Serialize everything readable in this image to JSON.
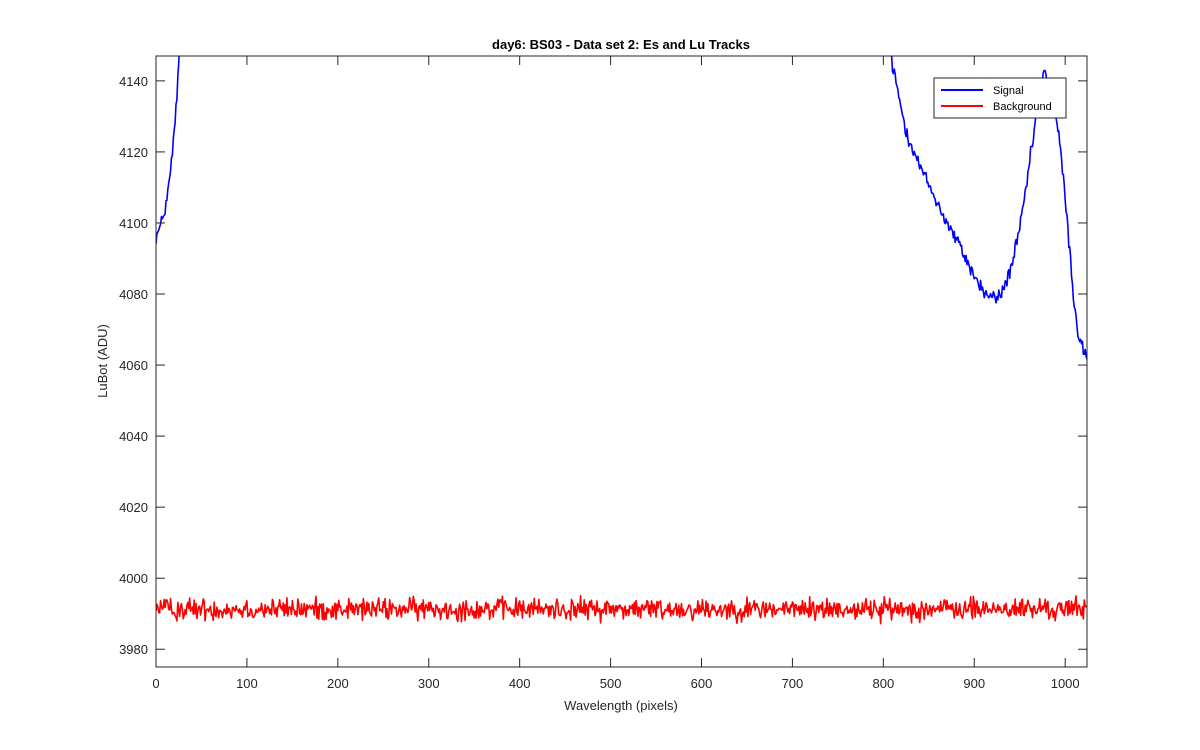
{
  "chart_data": {
    "type": "line",
    "title": "day6: BS03 - Data set 2: Es and Lu Tracks",
    "xlabel": "Wavelength (pixels)",
    "ylabel": "LuBot (ADU)",
    "xlim": [
      0,
      1024
    ],
    "ylim": [
      3975,
      4147
    ],
    "xticks": [
      0,
      100,
      200,
      300,
      400,
      500,
      600,
      700,
      800,
      900,
      1000
    ],
    "yticks": [
      3980,
      4000,
      4020,
      4040,
      4060,
      4080,
      4100,
      4120,
      4140
    ],
    "grid": false,
    "box": true,
    "legend_location": "top-right",
    "series": [
      {
        "name": "Signal",
        "color": "#0000ff",
        "x": [
          0,
          5,
          10,
          15,
          20,
          24,
          26,
          28,
          800,
          808,
          815,
          825,
          840,
          855,
          870,
          885,
          900,
          912,
          920,
          925,
          930,
          940,
          950,
          960,
          968,
          972,
          976,
          980,
          985,
          990,
          995,
          1000,
          1005,
          1010,
          1015,
          1020,
          1024
        ],
        "y": [
          4096,
          4099,
          4104,
          4112,
          4125,
          4140,
          4150,
          4165,
          4165,
          4147,
          4138,
          4126,
          4116,
          4108,
          4100,
          4093,
          4085,
          4080,
          4079,
          4079,
          4080,
          4087,
          4098,
          4115,
          4130,
          4138,
          4142,
          4141,
          4137,
          4130,
          4120,
          4107,
          4092,
          4077,
          4068,
          4064,
          4063
        ],
        "noise_amplitude": 1.5
      },
      {
        "name": "Background",
        "color": "#ff0000",
        "x": [
          0,
          1024
        ],
        "y": [
          3991.3,
          3991.3
        ],
        "noise_amplitude": 2.2
      }
    ]
  }
}
